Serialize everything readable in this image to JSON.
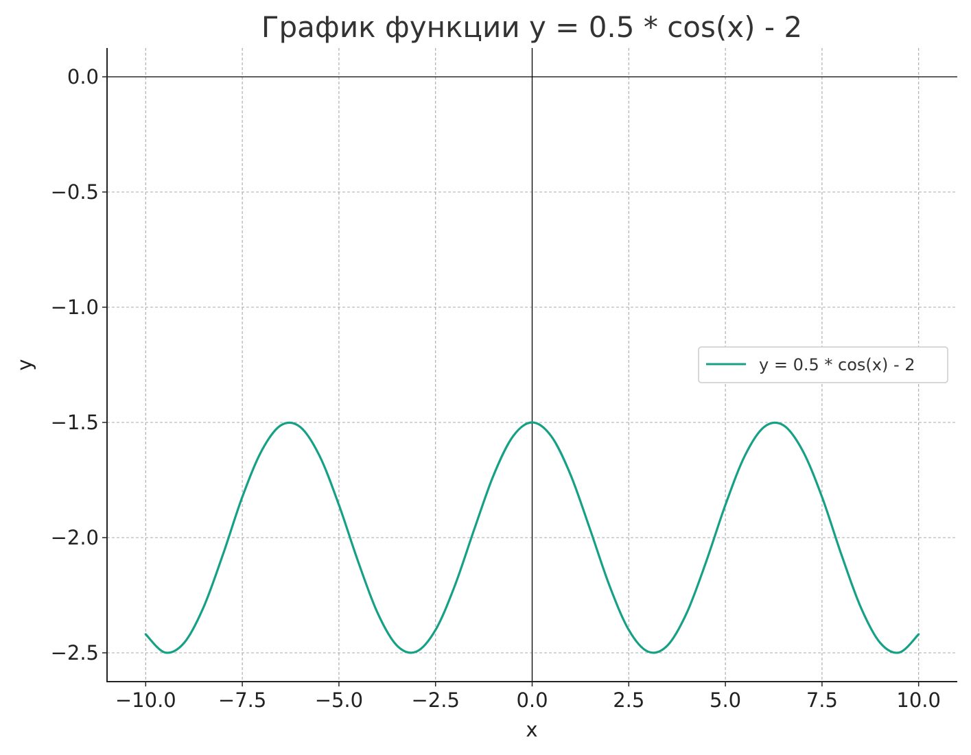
{
  "chart_data": {
    "type": "line",
    "title": "График функции y = 0.5 * cos(x) - 2",
    "xlabel": "x",
    "ylabel": "y",
    "xlim": [
      -11,
      11
    ],
    "ylim": [
      -2.625,
      0.125
    ],
    "xticks": [
      -10.0,
      -7.5,
      -5.0,
      -2.5,
      0.0,
      2.5,
      5.0,
      7.5,
      10.0
    ],
    "xtick_labels": [
      "−10.0",
      "−7.5",
      "−5.0",
      "−2.5",
      "0.0",
      "2.5",
      "5.0",
      "7.5",
      "10.0"
    ],
    "yticks": [
      0.0,
      -0.5,
      -1.0,
      -1.5,
      -2.0,
      -2.5
    ],
    "ytick_labels": [
      "0.0",
      "−0.5",
      "−1.0",
      "−1.5",
      "−2.0",
      "−2.5"
    ],
    "grid": true,
    "legend_position": "center-right",
    "series": [
      {
        "name": "y = 0.5 * cos(x) - 2",
        "color": "#16a085",
        "x": [
          -10,
          -9.5,
          -9,
          -8.5,
          -8,
          -7.5,
          -7,
          -6.5,
          -6,
          -5.5,
          -5,
          -4.5,
          -4,
          -3.5,
          -3,
          -2.5,
          -2,
          -1.5,
          -1,
          -0.5,
          0,
          0.5,
          1,
          1.5,
          2,
          2.5,
          3,
          3.5,
          4,
          4.5,
          5,
          5.5,
          6,
          6.5,
          7,
          7.5,
          8,
          8.5,
          9,
          9.5,
          10
        ],
        "y": [
          -2.4195,
          -2.4986,
          -2.4556,
          -2.301,
          -2.0728,
          -1.8234,
          -1.623,
          -1.5122,
          -1.5199,
          -1.6457,
          -1.8582,
          -2.1054,
          -2.3268,
          -2.4682,
          -2.495,
          -2.4006,
          -2.2081,
          -1.9646,
          -1.7298,
          -1.5612,
          -1.5,
          -1.5612,
          -1.7298,
          -1.9646,
          -2.2081,
          -2.4006,
          -2.495,
          -2.4682,
          -2.3268,
          -2.1054,
          -1.8582,
          -1.6457,
          -1.5199,
          -1.5122,
          -1.623,
          -1.8234,
          -2.0728,
          -2.301,
          -2.4556,
          -2.4986,
          -2.4195
        ]
      }
    ]
  }
}
